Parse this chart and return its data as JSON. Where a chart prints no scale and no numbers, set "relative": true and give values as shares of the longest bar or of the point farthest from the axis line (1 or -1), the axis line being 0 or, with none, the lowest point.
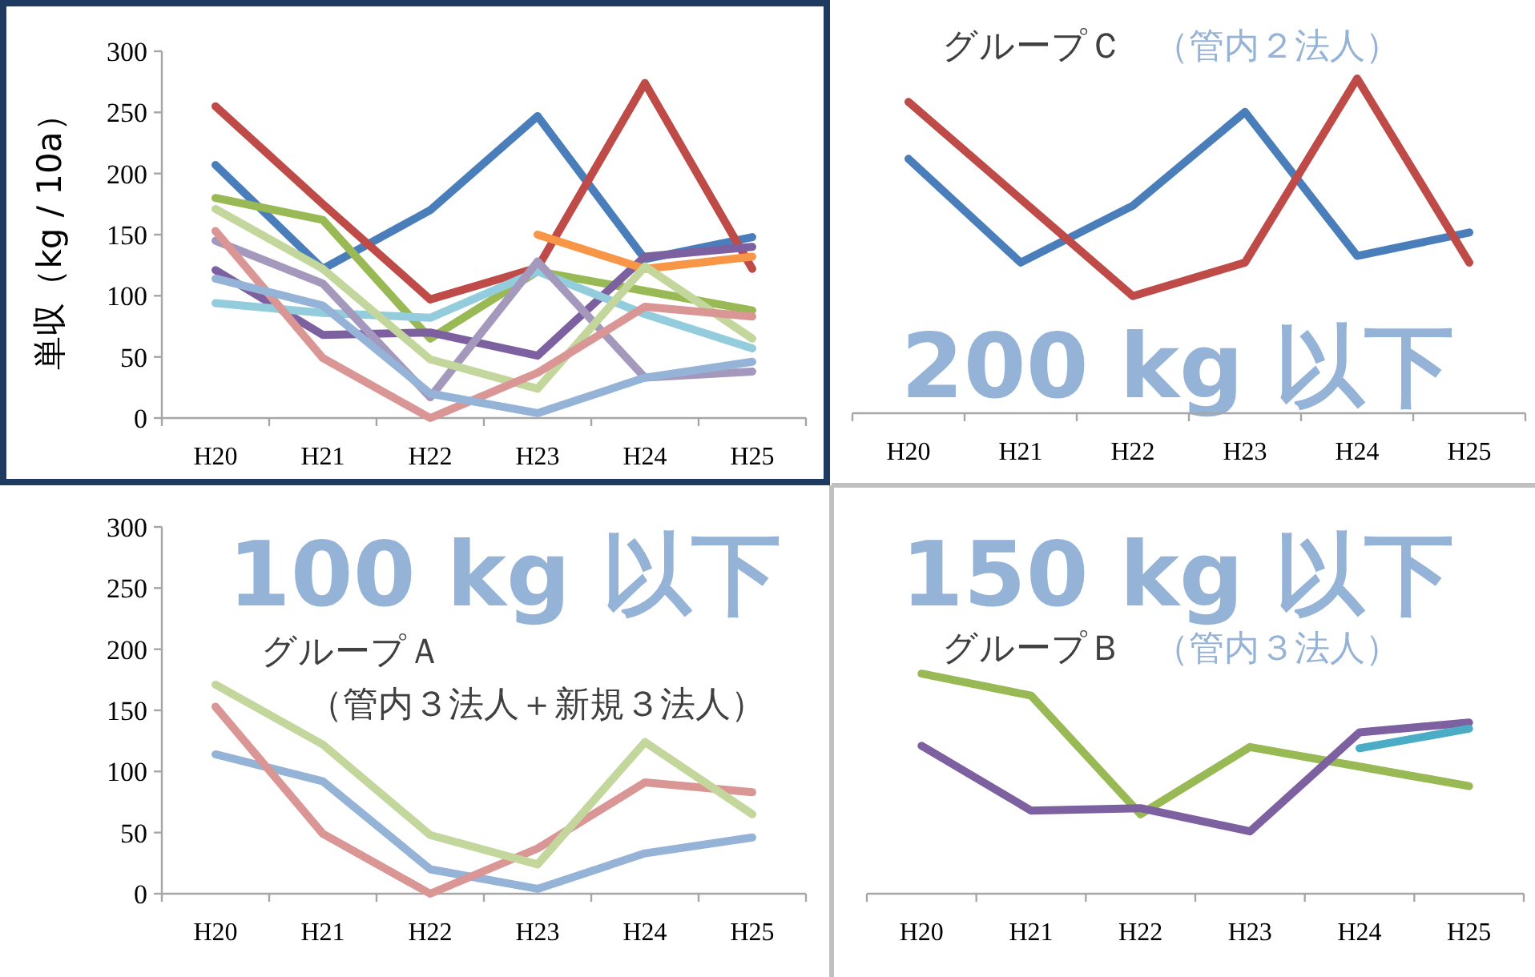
{
  "chart_data": [
    {
      "type": "line",
      "ylabel": "単収（kg / 10a）",
      "categories": [
        "H20",
        "H21",
        "H22",
        "H23",
        "H24",
        "H25"
      ],
      "ylim": [
        0,
        300
      ],
      "yticks": [
        0,
        50,
        100,
        150,
        200,
        250,
        300
      ],
      "series": [
        {
          "color": "#4a7ebb",
          "values": [
            207,
            122,
            170,
            247,
            130,
            148
          ]
        },
        {
          "color": "#be4b48",
          "values": [
            255,
            175,
            97,
            123,
            274,
            122
          ]
        },
        {
          "color": "#98b954",
          "values": [
            180,
            162,
            65,
            120,
            104,
            88
          ]
        },
        {
          "color": "#7d60a0",
          "values": [
            121,
            68,
            70,
            51,
            132,
            140
          ]
        },
        {
          "color": "#f79646",
          "values": [
            null,
            null,
            null,
            150,
            122,
            132
          ]
        },
        {
          "color": "#93cddd",
          "values": [
            94,
            86,
            82,
            120,
            85,
            57
          ]
        },
        {
          "color": "#a598bd",
          "values": [
            145,
            110,
            17,
            128,
            33,
            38
          ]
        },
        {
          "color": "#c3d69b",
          "values": [
            171,
            122,
            48,
            24,
            124,
            65
          ]
        },
        {
          "color": "#d99694",
          "values": [
            153,
            49,
            0,
            37,
            91,
            83
          ]
        },
        {
          "color": "#95b3d7",
          "values": [
            114,
            92,
            20,
            4,
            33,
            46
          ]
        }
      ]
    },
    {
      "type": "line",
      "title": "グループＣ",
      "subtitle": "（管内２法人）",
      "annotations": [
        "200 kg 以下"
      ],
      "categories": [
        "H20",
        "H21",
        "H22",
        "H23",
        "H24",
        "H25"
      ],
      "relative": true,
      "series": [
        {
          "color": "#4a7ebb",
          "values": [
            0.76,
            0.45,
            0.62,
            0.9,
            0.47,
            0.54
          ]
        },
        {
          "color": "#be4b48",
          "values": [
            0.93,
            0.64,
            0.35,
            0.45,
            1,
            0.45
          ]
        }
      ]
    },
    {
      "type": "line",
      "title": "グループＡ",
      "subtitle": "（管内３法人＋新規３法人）",
      "annotations": [
        "100 kg 以下"
      ],
      "categories": [
        "H20",
        "H21",
        "H22",
        "H23",
        "H24",
        "H25"
      ],
      "ylim": [
        0,
        300
      ],
      "yticks": [
        0,
        50,
        100,
        150,
        200,
        250,
        300
      ],
      "series": [
        {
          "color": "#95b3d7",
          "values": [
            114,
            92,
            20,
            4,
            33,
            46
          ]
        },
        {
          "color": "#d99694",
          "values": [
            153,
            49,
            0,
            37,
            91,
            83
          ]
        },
        {
          "color": "#c3d69b",
          "values": [
            171,
            122,
            48,
            24,
            124,
            65
          ]
        }
      ]
    },
    {
      "type": "line",
      "title": "グループＢ",
      "subtitle": "（管内３法人）",
      "annotations": [
        "150 kg 以下"
      ],
      "categories": [
        "H20",
        "H21",
        "H22",
        "H23",
        "H24",
        "H25"
      ],
      "ylim": [
        0,
        300
      ],
      "tick_labels": "x",
      "series": [
        {
          "color": "#98b954",
          "values": [
            180,
            162,
            65,
            120,
            104,
            88
          ]
        },
        {
          "color": "#7d60a0",
          "values": [
            121,
            68,
            70,
            51,
            132,
            140
          ]
        },
        {
          "color": "#4bacc6",
          "values": [
            null,
            null,
            null,
            null,
            119,
            135
          ]
        }
      ]
    }
  ]
}
